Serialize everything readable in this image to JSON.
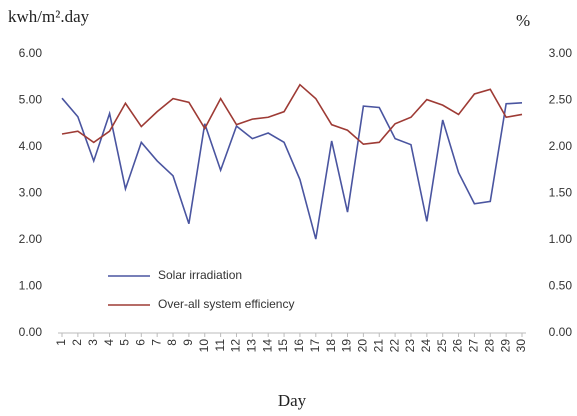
{
  "chart_data": {
    "type": "line",
    "y_label": "kwh/m².day",
    "y2_label": "%",
    "x_label": "Day",
    "categories": [
      "1",
      "2",
      "3",
      "4",
      "5",
      "6",
      "7",
      "8",
      "9",
      "10",
      "11",
      "12",
      "13",
      "14",
      "15",
      "16",
      "17",
      "18",
      "19",
      "20",
      "21",
      "22",
      "23",
      "24",
      "25",
      "26",
      "27",
      "28",
      "29",
      "30"
    ],
    "series": [
      {
        "name": "Solar irradiation",
        "color": "#4a55a0",
        "values": [
          5.05,
          4.65,
          3.7,
          4.72,
          3.1,
          4.1,
          3.7,
          3.38,
          2.35,
          4.5,
          3.5,
          4.45,
          4.18,
          4.3,
          4.1,
          3.3,
          2.02,
          4.13,
          2.6,
          4.88,
          4.85,
          4.18,
          4.05,
          2.4,
          4.58,
          3.45,
          2.78,
          2.83,
          4.93,
          4.95
        ]
      },
      {
        "name": "Over-all system efficiency",
        "color": "#9e3b35",
        "axis": "y2",
        "values": [
          2.14,
          2.17,
          2.05,
          2.17,
          2.47,
          2.22,
          2.38,
          2.52,
          2.48,
          2.2,
          2.52,
          2.24,
          2.3,
          2.32,
          2.38,
          2.67,
          2.52,
          2.24,
          2.18,
          2.03,
          2.05,
          2.25,
          2.32,
          2.51,
          2.45,
          2.35,
          2.57,
          2.62,
          2.32,
          2.35
        ]
      }
    ],
    "ylim": [
      0,
      6
    ],
    "yticks": [
      {
        "value": 0,
        "label": "0.00"
      },
      {
        "value": 1,
        "label": "1.00"
      },
      {
        "value": 2,
        "label": "2.00"
      },
      {
        "value": 3,
        "label": "3.00"
      },
      {
        "value": 4,
        "label": "4.00"
      },
      {
        "value": 5,
        "label": "5.00"
      },
      {
        "value": 6,
        "label": "6.00"
      }
    ],
    "y2lim": [
      0,
      3
    ],
    "y2ticks": [
      {
        "value": 0,
        "label": "0.00"
      },
      {
        "value": 0.5,
        "label": "0.50"
      },
      {
        "value": 1,
        "label": "1.00"
      },
      {
        "value": 1.5,
        "label": "1.50"
      },
      {
        "value": 2,
        "label": "2.00"
      },
      {
        "value": 2.5,
        "label": "2.50"
      },
      {
        "value": 3,
        "label": "3.00"
      }
    ],
    "legend": "lower left",
    "grid": false
  }
}
